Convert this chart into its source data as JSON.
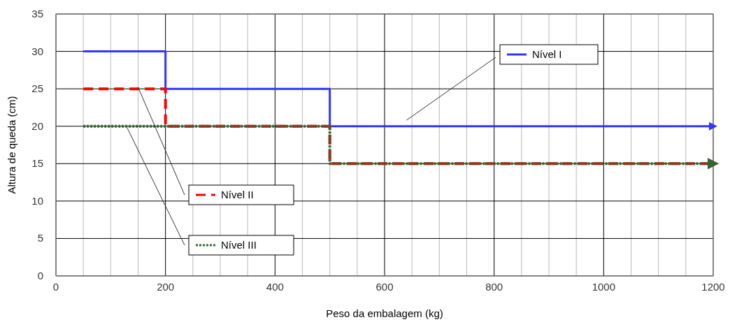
{
  "chart_data": {
    "type": "step",
    "xlabel": "Peso da embalagem (kg)",
    "ylabel": "Altura de queda (cm)",
    "xlim": [
      0,
      1200
    ],
    "ylim": [
      0,
      35
    ],
    "xticks": [
      0,
      {
        "value": 50,
        "label": null
      },
      {
        "value": 100,
        "label": null
      },
      {
        "value": 150,
        "label": null
      },
      200,
      {
        "value": 250,
        "label": null
      },
      {
        "value": 300,
        "label": null
      },
      {
        "value": 350,
        "label": null
      },
      400,
      {
        "value": 450,
        "label": null
      },
      {
        "value": 500,
        "label": null
      },
      {
        "value": 550,
        "label": null
      },
      600,
      {
        "value": 650,
        "label": null
      },
      {
        "value": 700,
        "label": null
      },
      {
        "value": 750,
        "label": null
      },
      800,
      {
        "value": 850,
        "label": null
      },
      {
        "value": 900,
        "label": null
      },
      {
        "value": 950,
        "label": null
      },
      1000,
      {
        "value": 1050,
        "label": null
      },
      {
        "value": 1100,
        "label": null
      },
      {
        "value": 1150,
        "label": null
      },
      1200
    ],
    "yticks": [
      0,
      5,
      10,
      15,
      20,
      25,
      30,
      35
    ],
    "grid": true,
    "legend": "center",
    "series": [
      {
        "name": "Nível I",
        "color": "#3333ff",
        "line_style": "solid",
        "x": [
          50,
          200,
          500,
          1200
        ],
        "values": [
          30,
          25,
          20,
          20
        ]
      },
      {
        "name": "Nível II",
        "color": "#ff0000",
        "line_style": "dashed",
        "x": [
          50,
          200,
          500,
          1200
        ],
        "values": [
          25,
          20,
          15,
          15
        ]
      },
      {
        "name": "Nível III",
        "color": "#336633",
        "line_style": "dotted",
        "x": [
          50,
          500,
          1200
        ],
        "values": [
          20,
          15,
          15
        ]
      }
    ]
  }
}
